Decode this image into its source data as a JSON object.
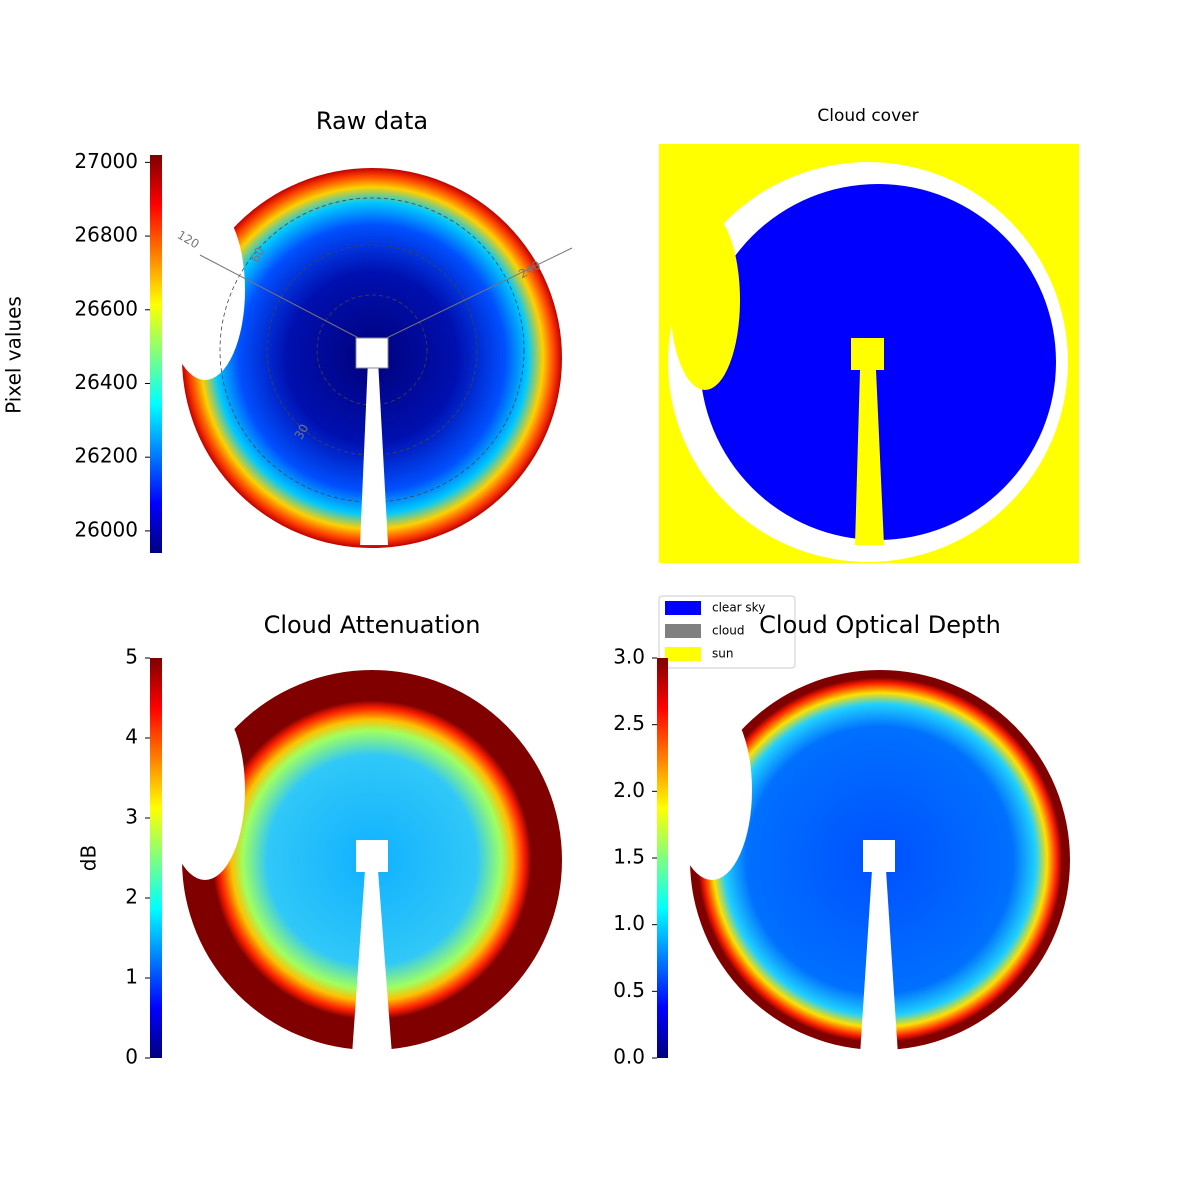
{
  "chart_data": [
    {
      "type": "image",
      "title": "Raw data",
      "colorbar": {
        "label": "Pixel values",
        "colormap": "jet",
        "lim": [
          25940,
          27020
        ],
        "ticks": [
          26000,
          26200,
          26400,
          26600,
          26800,
          27000
        ]
      },
      "annotations": [
        "120",
        "60",
        "240",
        "30"
      ]
    },
    {
      "type": "image",
      "title": "Cloud cover",
      "legend": {
        "series": [
          {
            "name": "clear sky",
            "color": "#0000ff"
          },
          {
            "name": "cloud",
            "color": "#808080"
          },
          {
            "name": "sun",
            "color": "#ffff00"
          }
        ]
      }
    },
    {
      "type": "image",
      "title": "Cloud Attenuation",
      "colorbar": {
        "label": "dB",
        "colormap": "jet",
        "lim": [
          0,
          5
        ],
        "ticks": [
          0,
          1,
          2,
          3,
          4,
          5
        ]
      }
    },
    {
      "type": "image",
      "title": "Cloud Optical Depth",
      "colorbar": {
        "colormap": "jet",
        "lim": [
          0,
          3
        ],
        "ticks": [
          {
            "value": 0,
            "label": "0.0"
          },
          {
            "value": 0.5,
            "label": "0.5"
          },
          {
            "value": 1,
            "label": "1.0"
          },
          {
            "value": 1.5,
            "label": "1.5"
          },
          {
            "value": 2,
            "label": "2.0"
          },
          {
            "value": 2.5,
            "label": "2.5"
          },
          {
            "value": 3,
            "label": "3.0"
          }
        ]
      }
    }
  ]
}
